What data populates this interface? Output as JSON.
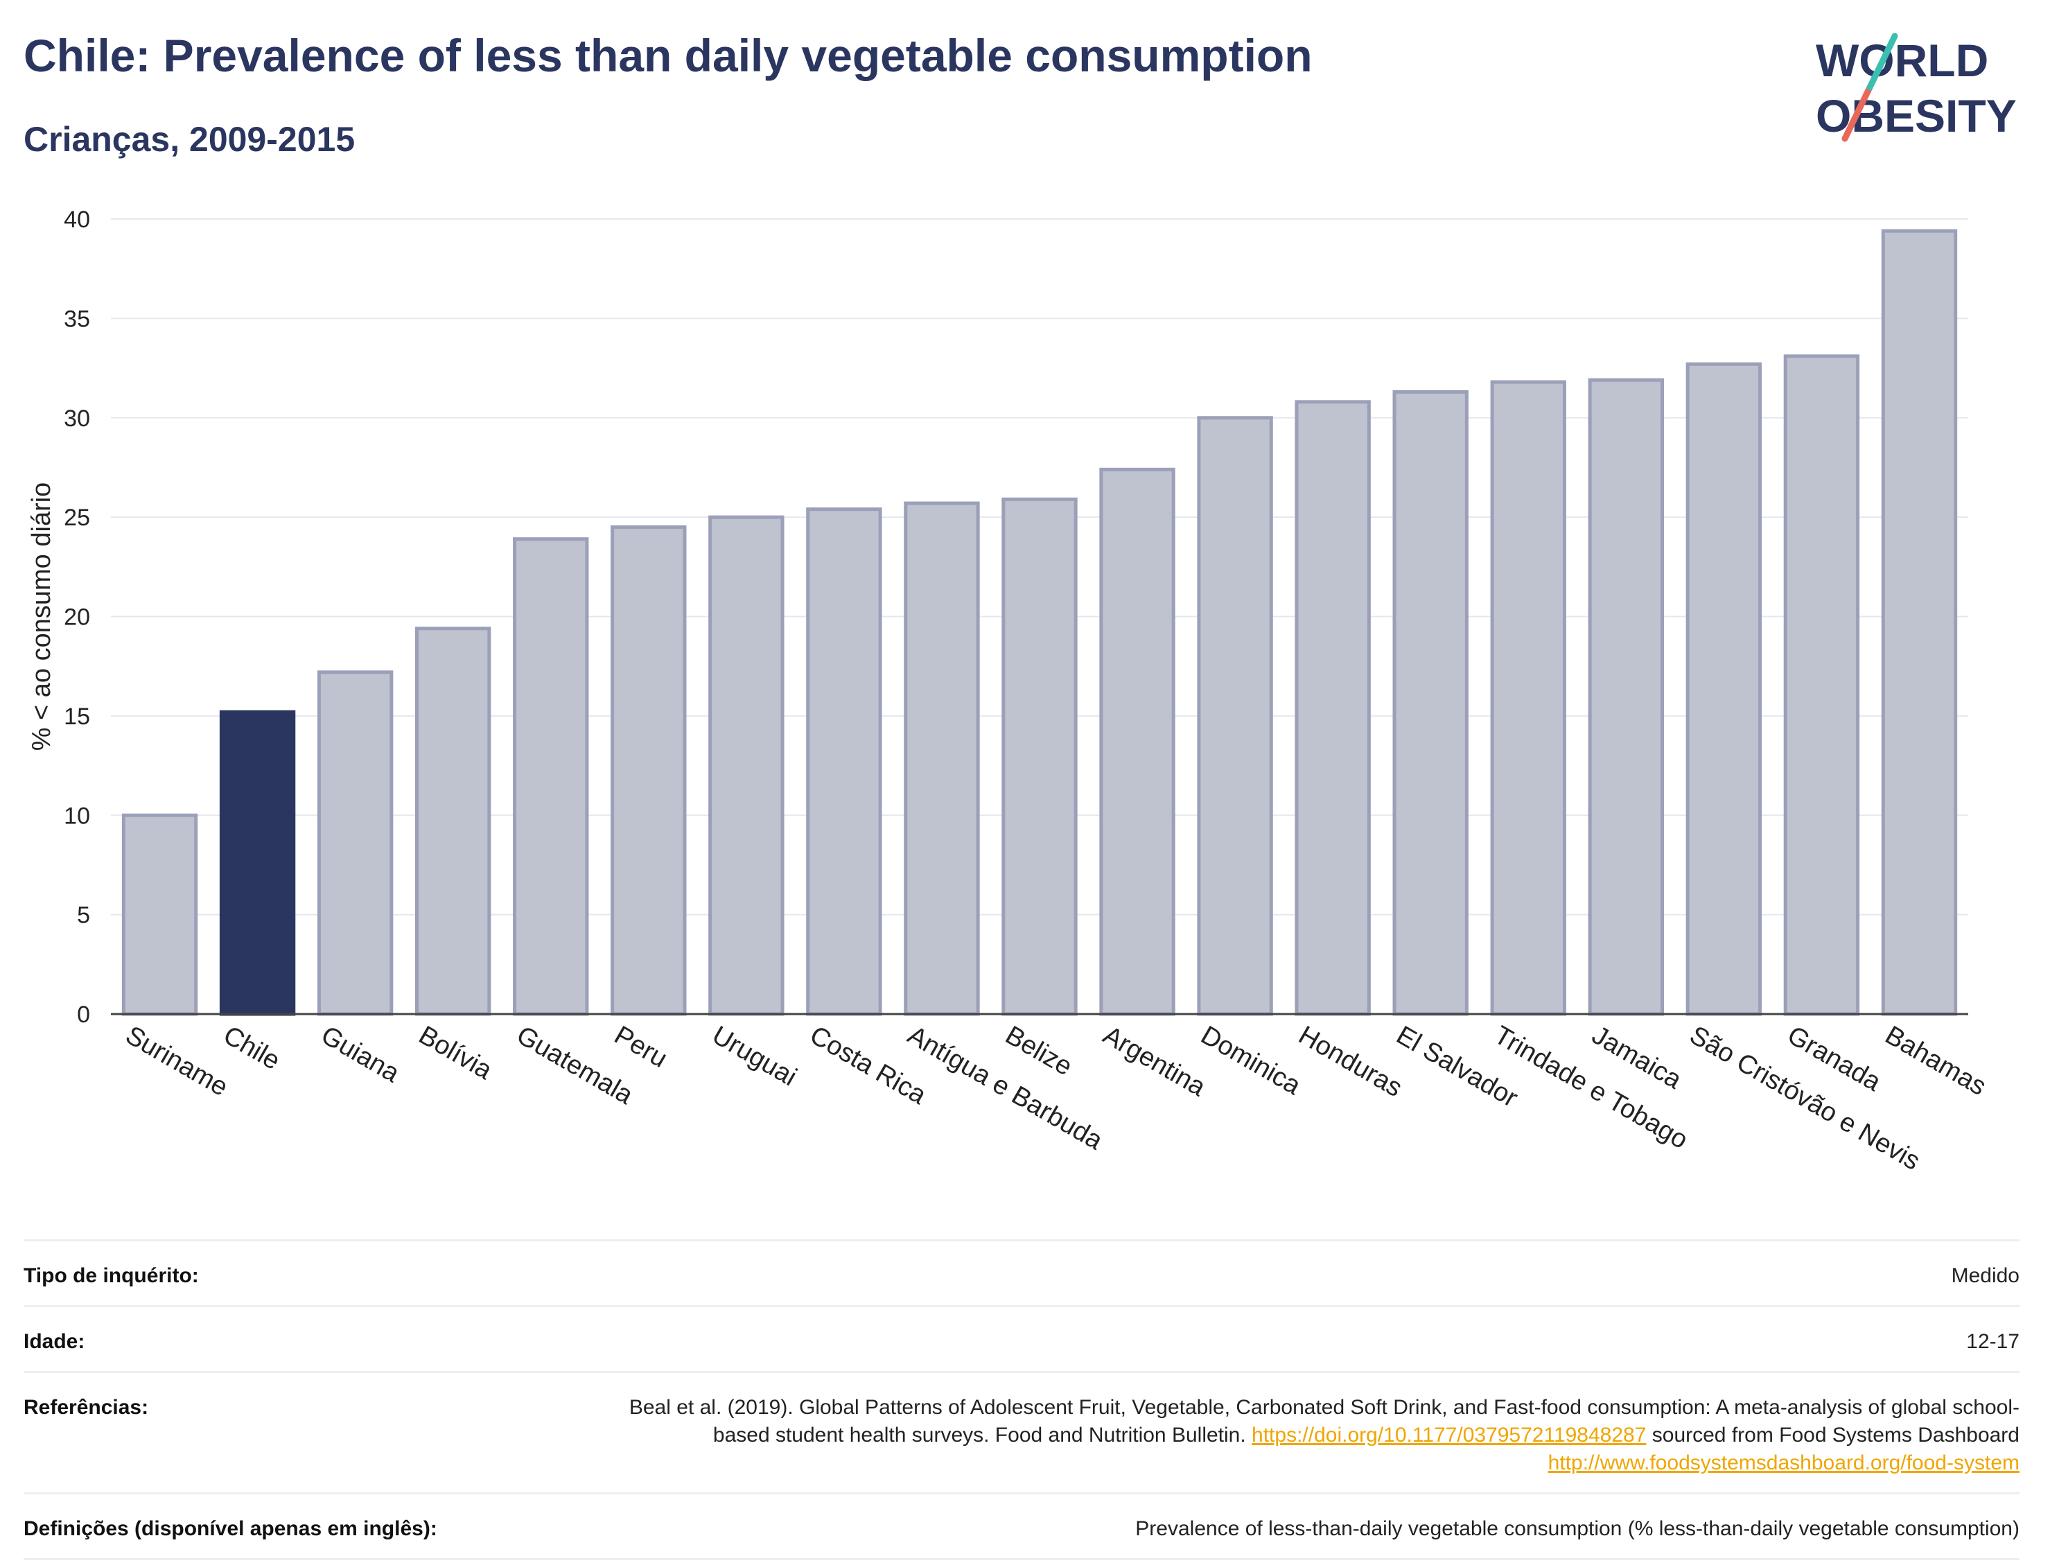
{
  "header": {
    "title": "Chile: Prevalence of less than daily vegetable consumption",
    "subtitle": "Crianças, 2009-2015"
  },
  "logo": {
    "line1": "WORLD",
    "line2": "OBESITY",
    "colors": {
      "text": "#2b3660",
      "slash_teal": "#3bbfb0",
      "slash_red": "#e8685a"
    }
  },
  "colors": {
    "bar": "#bfc2cf",
    "bar_border": "#9ba0b8",
    "highlight": "#2b3660",
    "grid": "#e6e8ef",
    "axis": "#444444"
  },
  "chart_data": {
    "type": "bar",
    "categories": [
      "Suriname",
      "Chile",
      "Guiana",
      "Bolívia",
      "Guatemala",
      "Peru",
      "Uruguai",
      "Costa Rica",
      "Antígua e Barbuda",
      "Belize",
      "Argentina",
      "Dominica",
      "Honduras",
      "El Salvador",
      "Trindade e Tobago",
      "Jamaica",
      "São Cristóvão e Nevis",
      "Granada",
      "Bahamas"
    ],
    "values": [
      10.0,
      15.2,
      17.2,
      19.4,
      23.9,
      24.5,
      25.0,
      25.4,
      25.7,
      25.9,
      27.4,
      30.0,
      30.8,
      31.3,
      31.8,
      31.9,
      32.7,
      33.1,
      39.4
    ],
    "highlight": "Chile",
    "ylabel": "% < ao consumo diário",
    "ylim": [
      0,
      40
    ],
    "yticks": [
      0,
      5,
      10,
      15,
      20,
      25,
      30,
      35,
      40
    ],
    "grid": true
  },
  "meta": {
    "rows": [
      {
        "label": "Tipo de inquérito:",
        "value": "Medido"
      },
      {
        "label": "Idade:",
        "value": "12-17"
      },
      {
        "label": "Referências:",
        "value_a": "Beal et al. (2019). Global Patterns of Adolescent Fruit, Vegetable, Carbonated Soft Drink, and Fast-food consumption: A meta-analysis of global school-based student health surveys. Food and Nutrition Bulletin. ",
        "link1": "https://doi.org/10.1177/0379572119848287",
        "value_b": " sourced from Food Systems Dashboard ",
        "link2": "http://www.foodsystemsdashboard.org/food-system"
      },
      {
        "label": "Definições (disponível apenas em inglês):",
        "value": "Prevalence of less-than-daily vegetable consumption (% less-than-daily vegetable consumption)"
      }
    ]
  }
}
